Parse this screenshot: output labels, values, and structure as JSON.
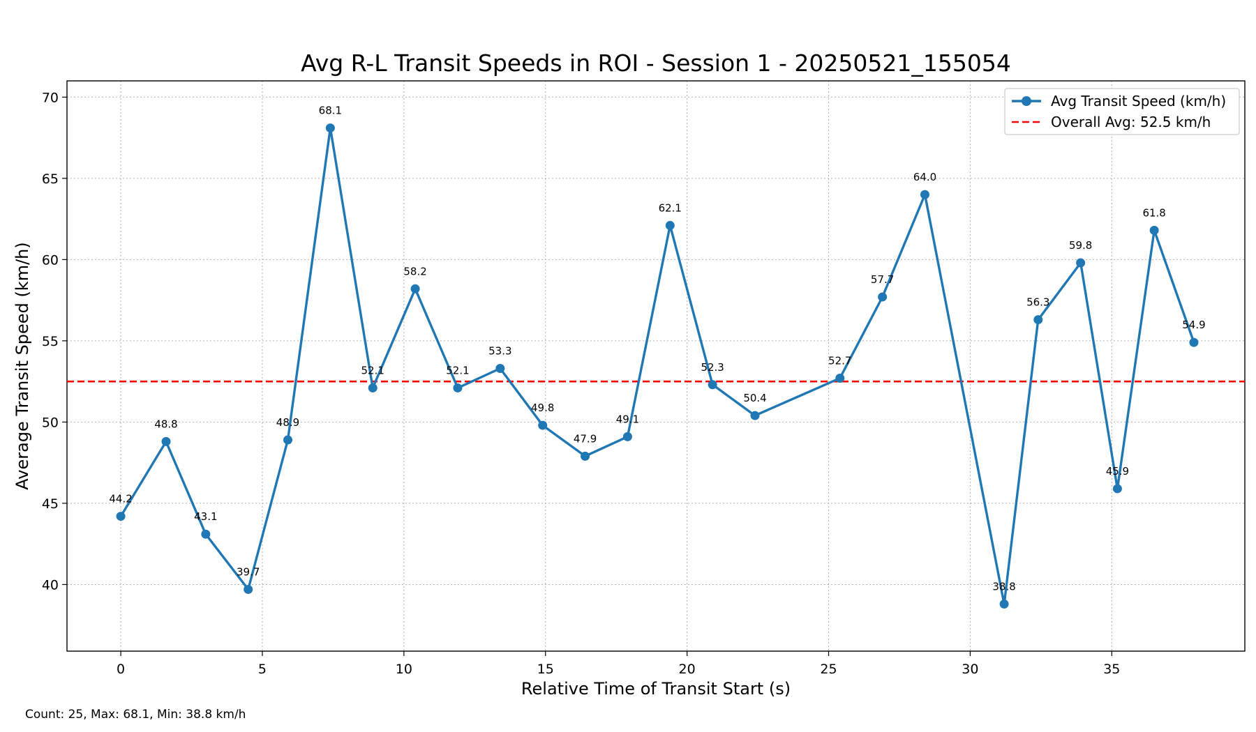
{
  "chart_data": {
    "type": "line",
    "title": "Avg R-L Transit Speeds in ROI - Session 1 - 20250521_155054",
    "xlabel": "Relative Time of Transit Start (s)",
    "ylabel": "Average Transit Speed (km/h)",
    "xlim": [
      -1.9,
      39.7
    ],
    "ylim": [
      35.9,
      71.0
    ],
    "xticks": [
      0,
      5,
      10,
      15,
      20,
      25,
      30,
      35
    ],
    "yticks": [
      40,
      45,
      50,
      55,
      60,
      65,
      70
    ],
    "grid": true,
    "legend_position": "top-right",
    "series": [
      {
        "name": "Avg Transit Speed (km/h)",
        "color": "#1f77b4",
        "marker": "circle",
        "x": [
          0,
          1.6,
          3.0,
          4.5,
          5.9,
          7.4,
          8.9,
          10.4,
          11.9,
          13.4,
          14.9,
          16.4,
          17.9,
          19.4,
          20.9,
          22.4,
          25.4,
          26.9,
          28.4,
          31.2,
          32.4,
          33.9,
          35.2,
          36.5,
          37.9
        ],
        "values": [
          44.2,
          48.8,
          43.1,
          39.7,
          48.9,
          68.1,
          52.1,
          58.2,
          52.1,
          53.3,
          49.8,
          47.9,
          49.1,
          62.1,
          52.3,
          50.4,
          52.7,
          57.7,
          64.0,
          38.8,
          56.3,
          59.8,
          45.9,
          61.8,
          54.9
        ],
        "labels": [
          "44.2",
          "48.8",
          "43.1",
          "39.7",
          "48.9",
          "68.1",
          "52.1",
          "58.2",
          "52.1",
          "53.3",
          "49.8",
          "47.9",
          "49.1",
          "62.1",
          "52.3",
          "50.4",
          "52.7",
          "57.7",
          "64.0",
          "38.8",
          "56.3",
          "59.8",
          "45.9",
          "61.8",
          "54.9"
        ]
      }
    ],
    "reference_line": {
      "name": "Overall Avg: 52.5 km/h",
      "value": 52.5,
      "color": "#ff0000",
      "style": "dashed"
    }
  },
  "footer": {
    "text": "Count: 25, Max: 68.1, Min: 38.8 km/h"
  }
}
